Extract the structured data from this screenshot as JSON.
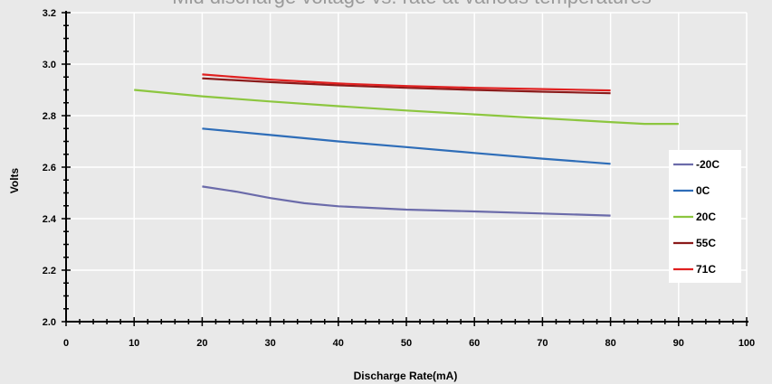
{
  "chart_data": {
    "type": "line",
    "title": "Mid discharge voltage vs. rate at various temperatures",
    "xlabel": "Discharge Rate(mA)",
    "ylabel": "Volts",
    "xlim": [
      0,
      100
    ],
    "ylim": [
      2.0,
      3.2
    ],
    "xticks": [
      "0",
      "10",
      "20",
      "30",
      "40",
      "50",
      "60",
      "70",
      "80",
      "90",
      "100"
    ],
    "yticks": [
      "2.0",
      "2.2",
      "2.4",
      "2.6",
      "2.8",
      "3.0",
      "3.2"
    ],
    "grid": true,
    "legend": "right",
    "series": [
      {
        "name": "-20C",
        "color": "#6b6baa",
        "points": [
          [
            20,
            2.525
          ],
          [
            25,
            2.505
          ],
          [
            30,
            2.48
          ],
          [
            35,
            2.46
          ],
          [
            40,
            2.448
          ],
          [
            50,
            2.435
          ],
          [
            60,
            2.428
          ],
          [
            70,
            2.42
          ],
          [
            80,
            2.412
          ]
        ]
      },
      {
        "name": "0C",
        "color": "#2e6db8",
        "points": [
          [
            20,
            2.75
          ],
          [
            30,
            2.725
          ],
          [
            40,
            2.7
          ],
          [
            50,
            2.678
          ],
          [
            60,
            2.655
          ],
          [
            70,
            2.633
          ],
          [
            80,
            2.613
          ]
        ]
      },
      {
        "name": "20C",
        "color": "#8cc63f",
        "points": [
          [
            10,
            2.9
          ],
          [
            20,
            2.875
          ],
          [
            30,
            2.855
          ],
          [
            40,
            2.837
          ],
          [
            50,
            2.82
          ],
          [
            60,
            2.805
          ],
          [
            70,
            2.79
          ],
          [
            80,
            2.775
          ],
          [
            85,
            2.768
          ],
          [
            90,
            2.768
          ]
        ]
      },
      {
        "name": "55C",
        "color": "#8b1a1a",
        "points": [
          [
            20,
            2.945
          ],
          [
            30,
            2.93
          ],
          [
            40,
            2.918
          ],
          [
            50,
            2.908
          ],
          [
            60,
            2.9
          ],
          [
            70,
            2.893
          ],
          [
            80,
            2.887
          ]
        ]
      },
      {
        "name": "71C",
        "color": "#e02020",
        "points": [
          [
            20,
            2.96
          ],
          [
            30,
            2.94
          ],
          [
            40,
            2.925
          ],
          [
            50,
            2.915
          ],
          [
            60,
            2.908
          ],
          [
            70,
            2.903
          ],
          [
            80,
            2.898
          ]
        ]
      }
    ]
  }
}
